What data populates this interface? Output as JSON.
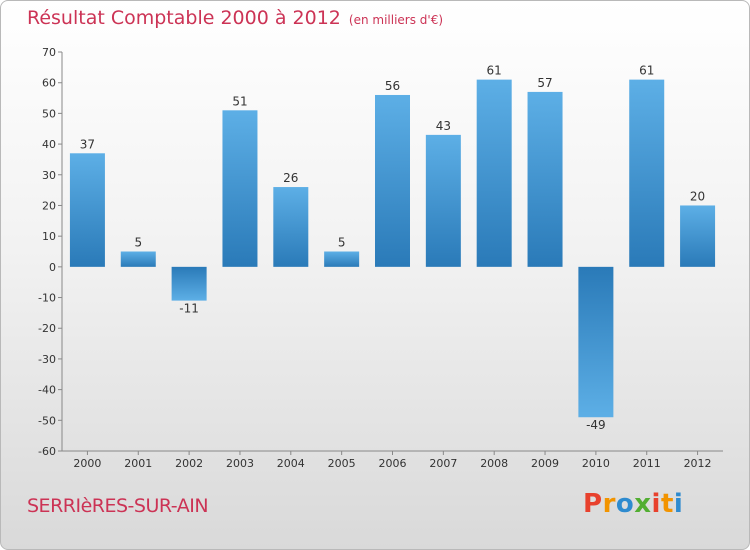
{
  "header": {
    "title": "Résultat Comptable 2000 à 2012",
    "unit": "(en milliers d'€)"
  },
  "footer": {
    "commune": "SERRIèRES-SUR-AIN",
    "brand": [
      "P",
      "r",
      "o",
      "x",
      "i",
      "t",
      "i"
    ],
    "brand_colors": [
      "#e8412d",
      "#f29400",
      "#2e8bcf",
      "#52ae32",
      "#e8412d",
      "#f29400",
      "#2e8bcf"
    ]
  },
  "chart_data": {
    "type": "bar",
    "title": "Résultat Comptable 2000 à 2012",
    "subtitle": "(en milliers d'€)",
    "categories": [
      "2000",
      "2001",
      "2002",
      "2003",
      "2004",
      "2005",
      "2006",
      "2007",
      "2008",
      "2009",
      "2010",
      "2011",
      "2012"
    ],
    "values": [
      37,
      5,
      -11,
      51,
      26,
      5,
      56,
      43,
      61,
      57,
      -49,
      61,
      20
    ],
    "data_labels": [
      "37",
      "5",
      "-11",
      "51",
      "26",
      "5",
      "56",
      "43",
      "61",
      "57",
      "-49",
      "61",
      "20"
    ],
    "yticks": [
      "70",
      "60",
      "50",
      "40",
      "30",
      "20",
      "10",
      "0",
      "-10",
      "-20",
      "-30",
      "-40",
      "-50",
      "-60"
    ],
    "ylim": [
      -60,
      70
    ],
    "xlabel": "",
    "ylabel": "",
    "grid": false,
    "legend": "none",
    "colors": {
      "bar_light": "#5dafe6",
      "bar_dark": "#2a7ab8",
      "axis": "#888888",
      "text": "#333333"
    }
  }
}
